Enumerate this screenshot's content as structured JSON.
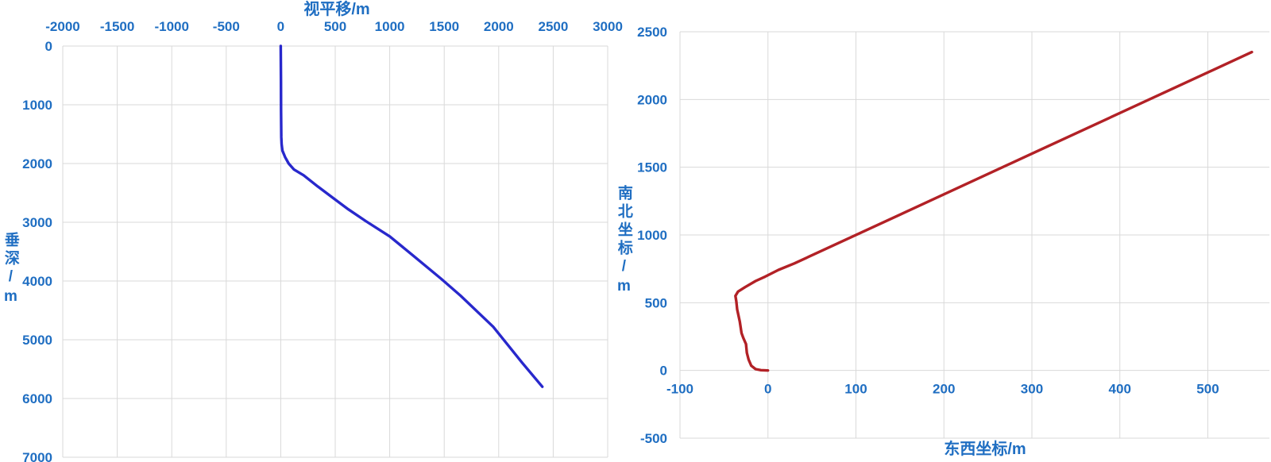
{
  "page": {
    "background": "#FFFFFF"
  },
  "colors": {
    "axis_label": "#1F6EC2",
    "gridline": "#D9D9D9",
    "vertical_section_line": "#2828CC",
    "plan_view_line": "#B22126"
  },
  "chart_data": [
    {
      "id": "vertical-section",
      "type": "line",
      "title": "视平移/m",
      "xlabel": "视平移/m",
      "ylabel": "垂深/m",
      "grid": true,
      "legend": false,
      "x_axis": {
        "min": -2000,
        "max": 3000,
        "tick_step": 500,
        "position": "top",
        "ticks": [
          -2000,
          -1500,
          -1000,
          -500,
          0,
          500,
          1000,
          1500,
          2000,
          2500,
          3000
        ]
      },
      "y_axis": {
        "min": 0,
        "max": 7000,
        "tick_step": 1000,
        "reversed": true,
        "position": "left",
        "ticks": [
          0,
          1000,
          2000,
          3000,
          4000,
          5000,
          6000,
          7000
        ]
      },
      "series": [
        {
          "color": "#2828CC",
          "points": [
            [
              0,
              0
            ],
            [
              2,
              600
            ],
            [
              3,
              1100
            ],
            [
              5,
              1550
            ],
            [
              8,
              1670
            ],
            [
              15,
              1780
            ],
            [
              40,
              1890
            ],
            [
              73,
              2000
            ],
            [
              120,
              2100
            ],
            [
              210,
              2200
            ],
            [
              340,
              2390
            ],
            [
              490,
              2600
            ],
            [
              620,
              2780
            ],
            [
              780,
              2980
            ],
            [
              1000,
              3240
            ],
            [
              1210,
              3560
            ],
            [
              1470,
              3960
            ],
            [
              1650,
              4250
            ],
            [
              1950,
              4780
            ],
            [
              2215,
              5390
            ],
            [
              2400,
              5800
            ]
          ]
        }
      ]
    },
    {
      "id": "plan-view",
      "type": "line",
      "title": "",
      "xlabel": "东西坐标/m",
      "ylabel": "南北坐标/m",
      "grid": true,
      "legend": false,
      "x_axis": {
        "min": -100,
        "max": 570,
        "tick_step": 100,
        "position": "bottom-at-zero",
        "ticks": [
          -100,
          0,
          100,
          200,
          300,
          400,
          500
        ]
      },
      "y_axis": {
        "min": -500,
        "max": 2500,
        "tick_step": 500,
        "reversed": false,
        "position": "left",
        "ticks": [
          -500,
          0,
          500,
          1000,
          1500,
          2000,
          2500
        ]
      },
      "series": [
        {
          "color": "#B22126",
          "points": [
            [
              0,
              0
            ],
            [
              -8,
              2
            ],
            [
              -14,
              10
            ],
            [
              -19,
              35
            ],
            [
              -22,
              80
            ],
            [
              -24,
              130
            ],
            [
              -25,
              195
            ],
            [
              -28,
              240
            ],
            [
              -30,
              275
            ],
            [
              -32,
              360
            ],
            [
              -35,
              450
            ],
            [
              -36,
              510
            ],
            [
              -37,
              550
            ],
            [
              -34,
              582
            ],
            [
              -26,
              615
            ],
            [
              -14,
              660
            ],
            [
              -3,
              693
            ],
            [
              12,
              742
            ],
            [
              30,
              790
            ],
            [
              150,
              1150
            ],
            [
              300,
              1600
            ],
            [
              450,
              2050
            ],
            [
              550,
              2350
            ]
          ]
        }
      ]
    }
  ]
}
